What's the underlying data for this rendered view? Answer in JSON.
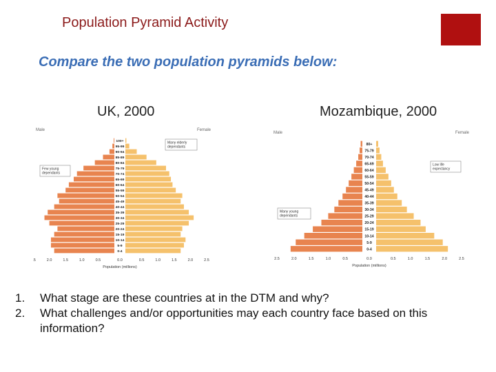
{
  "header": {
    "title": "Population Pyramid Activity",
    "subtitle": "Compare the two population pyramids below:"
  },
  "chart_data": [
    {
      "type": "bar",
      "orientation": "horizontal-pyramid",
      "title": "UK, 2000",
      "left_label": "Male",
      "right_label": "Female",
      "xlabel": "Population (millions)",
      "xlim": [
        -2.5,
        2.5
      ],
      "x_ticks": [
        "2.5",
        "2.0",
        "1.5",
        "1.0",
        "0.5",
        "0.0",
        "0.5",
        "1.0",
        "1.5",
        "2.0",
        "2.5"
      ],
      "categories": [
        "100+",
        "95-99",
        "90-94",
        "85-89",
        "80-84",
        "75-79",
        "70-74",
        "65-69",
        "60-64",
        "55-59",
        "50-54",
        "45-49",
        "40-44",
        "35-39",
        "30-34",
        "25-29",
        "20-24",
        "15-19",
        "10-14",
        "5-9",
        "0-4"
      ],
      "series": [
        {
          "name": "Male",
          "values": [
            0.02,
            0.06,
            0.15,
            0.35,
            0.6,
            0.95,
            1.15,
            1.25,
            1.4,
            1.5,
            1.75,
            1.7,
            1.85,
            2.05,
            2.15,
            2.0,
            1.75,
            1.85,
            1.95,
            1.95,
            1.85
          ]
        },
        {
          "name": "Female",
          "values": [
            0.03,
            0.12,
            0.35,
            0.65,
            0.95,
            1.25,
            1.35,
            1.4,
            1.45,
            1.55,
            1.75,
            1.7,
            1.8,
            1.95,
            2.1,
            1.95,
            1.75,
            1.7,
            1.85,
            1.8,
            1.7
          ]
        }
      ],
      "annotations": [
        {
          "text": "Many elderly dependants",
          "placement": "top-right"
        },
        {
          "text": "Few young dependants",
          "placement": "middle-left"
        }
      ],
      "colors": {
        "male": "#e8844f",
        "female": "#f5c16c"
      }
    },
    {
      "type": "bar",
      "orientation": "horizontal-pyramid",
      "title": "Mozambique, 2000",
      "left_label": "Male",
      "right_label": "Female",
      "xlabel": "Population (millions)",
      "xlim": [
        -2.5,
        2.5
      ],
      "x_ticks": [
        "2.5",
        "2.0",
        "1.5",
        "1.0",
        "0.5",
        "0.0",
        "0.5",
        "1.0",
        "1.5",
        "2.0",
        "2.5"
      ],
      "categories": [
        "80+",
        "75-79",
        "70-74",
        "65-69",
        "60-64",
        "55-59",
        "50-54",
        "45-49",
        "40-44",
        "35-39",
        "30-34",
        "25-29",
        "20-24",
        "15-19",
        "10-14",
        "5-9",
        "0-4"
      ],
      "series": [
        {
          "name": "Male",
          "values": [
            0.05,
            0.08,
            0.12,
            0.18,
            0.25,
            0.32,
            0.4,
            0.48,
            0.58,
            0.7,
            0.82,
            1.0,
            1.2,
            1.45,
            1.7,
            1.95,
            2.1
          ]
        },
        {
          "name": "Female",
          "values": [
            0.06,
            0.1,
            0.15,
            0.2,
            0.28,
            0.36,
            0.44,
            0.52,
            0.62,
            0.75,
            0.9,
            1.1,
            1.3,
            1.45,
            1.7,
            1.95,
            2.1
          ]
        }
      ],
      "annotations": [
        {
          "text": "Low life expectancy",
          "placement": "top-right"
        },
        {
          "text": "Many young dependants",
          "placement": "bottom-left"
        }
      ],
      "colors": {
        "male": "#e8844f",
        "female": "#f5c16c"
      }
    }
  ],
  "questions": [
    {
      "number": "1.",
      "text": "What stage are these countries at in the DTM and why?"
    },
    {
      "number": "2.",
      "text": "What challenges and/or opportunities may each country face based on this information?"
    }
  ]
}
